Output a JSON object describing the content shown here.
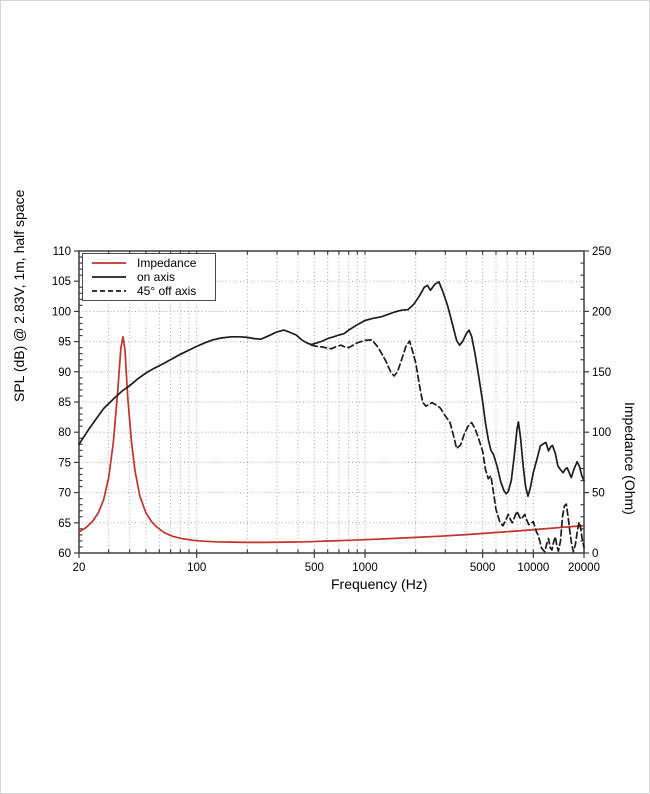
{
  "page": {
    "background": "#ffffff",
    "frame_color": "#d6d6d6"
  },
  "chart_data": {
    "type": "line",
    "x_axis": {
      "label": "Frequency (Hz)",
      "scale": "log",
      "range": [
        20,
        20000
      ],
      "major_ticks": [
        20,
        100,
        500,
        1000,
        5000,
        10000,
        20000
      ],
      "major_tick_labels": [
        "20",
        "100",
        "500",
        "1000",
        "5000",
        "10000",
        "20000"
      ],
      "minor_ticks": [
        30,
        40,
        50,
        60,
        70,
        80,
        90,
        200,
        300,
        400,
        600,
        700,
        800,
        900,
        2000,
        3000,
        4000,
        6000,
        7000,
        8000,
        9000
      ]
    },
    "y_axis_left": {
      "label": "SPL (dB) @ 2.83V, 1m, half space",
      "range": [
        60,
        110
      ],
      "major_step": 5,
      "minor_step": 1
    },
    "y_axis_right": {
      "label": "Impedance (Ohm)",
      "range": [
        0,
        250
      ],
      "major_step": 50,
      "minor_step": 10
    },
    "grid": {
      "show": true,
      "style": "dotted",
      "color": "#a6a6a6"
    },
    "frame_color": "#3f3f3f",
    "legend": {
      "position": "top-left",
      "entries": [
        {
          "label": "Impedance",
          "color": "#c63129",
          "dash": "solid"
        },
        {
          "label": "on axis",
          "color": "#1c1c1c",
          "dash": "solid"
        },
        {
          "label": "45° off axis",
          "color": "#1c1c1c",
          "dash": "dashed"
        }
      ]
    },
    "series": [
      {
        "name": "Impedance",
        "axis": "right",
        "unit": "Ohm",
        "color": "#c63129",
        "dash": "solid",
        "points": [
          [
            20,
            17.5
          ],
          [
            22,
            21
          ],
          [
            24,
            26
          ],
          [
            26,
            33
          ],
          [
            28,
            44
          ],
          [
            30,
            62
          ],
          [
            32,
            92
          ],
          [
            34,
            135
          ],
          [
            35.5,
            170
          ],
          [
            36.5,
            179
          ],
          [
            37.5,
            168
          ],
          [
            39,
            128
          ],
          [
            41,
            92
          ],
          [
            43,
            68
          ],
          [
            46,
            47
          ],
          [
            50,
            33
          ],
          [
            54,
            26
          ],
          [
            58,
            21.5
          ],
          [
            64,
            17
          ],
          [
            72,
            13.8
          ],
          [
            82,
            11.8
          ],
          [
            95,
            10.5
          ],
          [
            110,
            9.8
          ],
          [
            130,
            9.3
          ],
          [
            160,
            9
          ],
          [
            200,
            8.8
          ],
          [
            260,
            8.8
          ],
          [
            340,
            9
          ],
          [
            450,
            9.3
          ],
          [
            600,
            9.9
          ],
          [
            800,
            10.5
          ],
          [
            1000,
            11
          ],
          [
            1400,
            11.9
          ],
          [
            2000,
            12.9
          ],
          [
            2800,
            13.9
          ],
          [
            4000,
            15.2
          ],
          [
            5600,
            16.6
          ],
          [
            8000,
            18.2
          ],
          [
            11000,
            19.8
          ],
          [
            15000,
            21.3
          ],
          [
            20000,
            22.7
          ]
        ]
      },
      {
        "name": "on axis",
        "axis": "left",
        "unit": "dB",
        "color": "#1c1c1c",
        "dash": "solid",
        "points": [
          [
            20,
            78
          ],
          [
            23,
            80.6
          ],
          [
            25,
            82
          ],
          [
            28,
            83.9
          ],
          [
            32,
            85.5
          ],
          [
            36,
            86.8
          ],
          [
            40,
            87.7
          ],
          [
            45,
            88.9
          ],
          [
            50,
            89.8
          ],
          [
            56,
            90.6
          ],
          [
            63,
            91.3
          ],
          [
            71,
            92.1
          ],
          [
            80,
            92.9
          ],
          [
            90,
            93.6
          ],
          [
            100,
            94.2
          ],
          [
            112,
            94.8
          ],
          [
            125,
            95.3
          ],
          [
            140,
            95.6
          ],
          [
            160,
            95.8
          ],
          [
            180,
            95.8
          ],
          [
            200,
            95.7
          ],
          [
            220,
            95.5
          ],
          [
            240,
            95.4
          ],
          [
            260,
            95.8
          ],
          [
            300,
            96.6
          ],
          [
            330,
            96.9
          ],
          [
            360,
            96.5
          ],
          [
            390,
            96.1
          ],
          [
            420,
            95.3
          ],
          [
            450,
            94.8
          ],
          [
            480,
            94.5
          ],
          [
            520,
            94.8
          ],
          [
            560,
            95.1
          ],
          [
            600,
            95.5
          ],
          [
            650,
            95.8
          ],
          [
            700,
            96.1
          ],
          [
            750,
            96.3
          ],
          [
            800,
            96.9
          ],
          [
            900,
            97.8
          ],
          [
            1000,
            98.5
          ],
          [
            1100,
            98.8
          ],
          [
            1250,
            99.1
          ],
          [
            1400,
            99.6
          ],
          [
            1500,
            99.9
          ],
          [
            1650,
            100.2
          ],
          [
            1800,
            100.3
          ],
          [
            1950,
            101.2
          ],
          [
            2100,
            102.5
          ],
          [
            2250,
            104
          ],
          [
            2350,
            104.3
          ],
          [
            2450,
            103.5
          ],
          [
            2600,
            104.5
          ],
          [
            2750,
            104.9
          ],
          [
            2900,
            103.3
          ],
          [
            3100,
            100.9
          ],
          [
            3300,
            98
          ],
          [
            3500,
            95.2
          ],
          [
            3650,
            94.4
          ],
          [
            3800,
            95
          ],
          [
            4000,
            96.3
          ],
          [
            4150,
            96.9
          ],
          [
            4300,
            95.9
          ],
          [
            4500,
            93
          ],
          [
            4700,
            89.9
          ],
          [
            5000,
            85
          ],
          [
            5200,
            81.5
          ],
          [
            5400,
            78.8
          ],
          [
            5600,
            77
          ],
          [
            5800,
            76.3
          ],
          [
            6100,
            74.3
          ],
          [
            6400,
            71.8
          ],
          [
            6700,
            70.3
          ],
          [
            6900,
            69.8
          ],
          [
            7100,
            70.2
          ],
          [
            7400,
            72
          ],
          [
            7700,
            76
          ],
          [
            8000,
            80.5
          ],
          [
            8150,
            81.7
          ],
          [
            8400,
            79
          ],
          [
            8700,
            74.5
          ],
          [
            9000,
            71
          ],
          [
            9300,
            69.4
          ],
          [
            9600,
            70.8
          ],
          [
            10000,
            73.3
          ],
          [
            10500,
            75.5
          ],
          [
            11000,
            77.7
          ],
          [
            11500,
            78.1
          ],
          [
            11900,
            78.3
          ],
          [
            12300,
            76.9
          ],
          [
            12700,
            77.6
          ],
          [
            13000,
            77.8
          ],
          [
            13500,
            76.5
          ],
          [
            14000,
            74.4
          ],
          [
            14500,
            73.8
          ],
          [
            15000,
            73.3
          ],
          [
            15500,
            73.9
          ],
          [
            15900,
            74.1
          ],
          [
            16400,
            73.2
          ],
          [
            16800,
            72.5
          ],
          [
            17400,
            73.8
          ],
          [
            18200,
            75.1
          ],
          [
            18800,
            74.3
          ],
          [
            19400,
            72.8
          ],
          [
            20000,
            72
          ]
        ]
      },
      {
        "name": "45° off axis",
        "axis": "left",
        "unit": "dB",
        "color": "#1c1c1c",
        "dash": "dashed",
        "points": [
          [
            480,
            94.4
          ],
          [
            520,
            94.2
          ],
          [
            560,
            94.1
          ],
          [
            600,
            93.9
          ],
          [
            630,
            93.8
          ],
          [
            680,
            94.2
          ],
          [
            720,
            94.4
          ],
          [
            760,
            94.1
          ],
          [
            800,
            94
          ],
          [
            850,
            94.4
          ],
          [
            900,
            94.8
          ],
          [
            1000,
            95.2
          ],
          [
            1100,
            95.3
          ],
          [
            1200,
            94
          ],
          [
            1330,
            91.8
          ],
          [
            1420,
            90
          ],
          [
            1490,
            89.3
          ],
          [
            1560,
            90
          ],
          [
            1650,
            92
          ],
          [
            1750,
            94.2
          ],
          [
            1840,
            95.1
          ],
          [
            1900,
            93.8
          ],
          [
            2000,
            91.5
          ],
          [
            2100,
            88
          ],
          [
            2200,
            85
          ],
          [
            2300,
            84.3
          ],
          [
            2400,
            84.6
          ],
          [
            2500,
            84.9
          ],
          [
            2650,
            84.5
          ],
          [
            2800,
            84
          ],
          [
            3000,
            82.7
          ],
          [
            3200,
            81.6
          ],
          [
            3350,
            79.5
          ],
          [
            3500,
            77.3
          ],
          [
            3700,
            77.9
          ],
          [
            3900,
            79.8
          ],
          [
            4100,
            81
          ],
          [
            4300,
            81.6
          ],
          [
            4500,
            80.6
          ],
          [
            4700,
            79.2
          ],
          [
            5000,
            76.8
          ],
          [
            5200,
            73.8
          ],
          [
            5400,
            72.3
          ],
          [
            5600,
            72.8
          ],
          [
            5800,
            70
          ],
          [
            6000,
            67.2
          ],
          [
            6300,
            65.3
          ],
          [
            6600,
            64.5
          ],
          [
            6850,
            65.4
          ],
          [
            7100,
            66.4
          ],
          [
            7300,
            65.6
          ],
          [
            7500,
            65
          ],
          [
            7800,
            66.2
          ],
          [
            8000,
            66.9
          ],
          [
            8300,
            65.9
          ],
          [
            8500,
            65.6
          ],
          [
            8700,
            66
          ],
          [
            8900,
            66.4
          ],
          [
            9100,
            65.6
          ],
          [
            9400,
            64.7
          ],
          [
            9700,
            64.9
          ],
          [
            10000,
            65.2
          ],
          [
            10400,
            63.6
          ],
          [
            10700,
            62.9
          ],
          [
            11200,
            60.8
          ],
          [
            11700,
            60.2
          ],
          [
            12000,
            61.5
          ],
          [
            12300,
            62.4
          ],
          [
            12600,
            60.9
          ],
          [
            12900,
            60.5
          ],
          [
            13200,
            61.8
          ],
          [
            13500,
            62.7
          ],
          [
            13800,
            61.2
          ],
          [
            14100,
            60.3
          ],
          [
            14500,
            62
          ],
          [
            14900,
            66
          ],
          [
            15300,
            67.8
          ],
          [
            15700,
            68.1
          ],
          [
            16100,
            66
          ],
          [
            16500,
            63.5
          ],
          [
            16900,
            61.4
          ],
          [
            17300,
            60.2
          ],
          [
            17800,
            61.5
          ],
          [
            18300,
            63.8
          ],
          [
            18700,
            65.1
          ],
          [
            19100,
            64.2
          ],
          [
            19500,
            62.4
          ],
          [
            20000,
            60.9
          ]
        ]
      }
    ]
  }
}
